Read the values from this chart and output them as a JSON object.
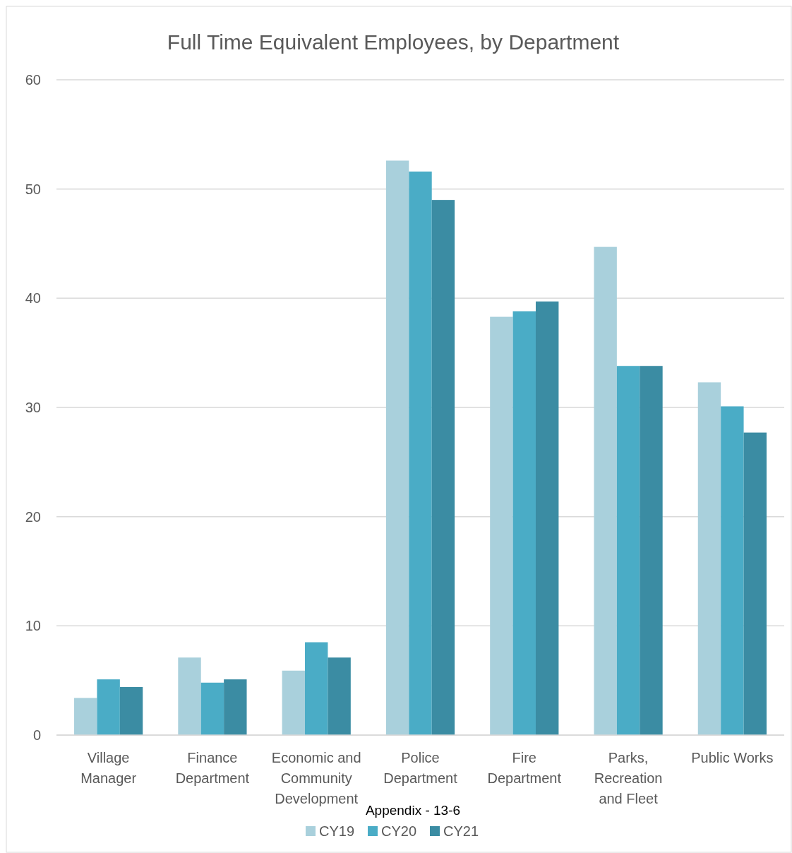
{
  "chart_data": {
    "type": "bar",
    "title": "Full Time Equivalent Employees, by Department",
    "categories": [
      "Village Manager",
      "Finance Department",
      "Economic and Community Development",
      "Police Department",
      "Fire Department",
      "Parks, Recreation and Fleet",
      "Public Works"
    ],
    "series": [
      {
        "name": "CY19",
        "color": "#a9d0dc",
        "values": [
          3.4,
          7.1,
          5.9,
          52.6,
          38.3,
          44.7,
          32.3
        ]
      },
      {
        "name": "CY20",
        "color": "#4aacc6",
        "values": [
          5.1,
          4.8,
          8.5,
          51.6,
          38.8,
          33.8,
          30.1
        ]
      },
      {
        "name": "CY21",
        "color": "#3b8ca3",
        "values": [
          4.4,
          5.1,
          7.1,
          49.0,
          39.7,
          33.8,
          27.7
        ]
      }
    ],
    "ylim": [
      0,
      60
    ],
    "yticks": [
      0,
      10,
      20,
      30,
      40,
      50,
      60
    ],
    "grid": "y",
    "legend": "bottom",
    "annotations": [
      "Appendix - 13-6"
    ]
  }
}
